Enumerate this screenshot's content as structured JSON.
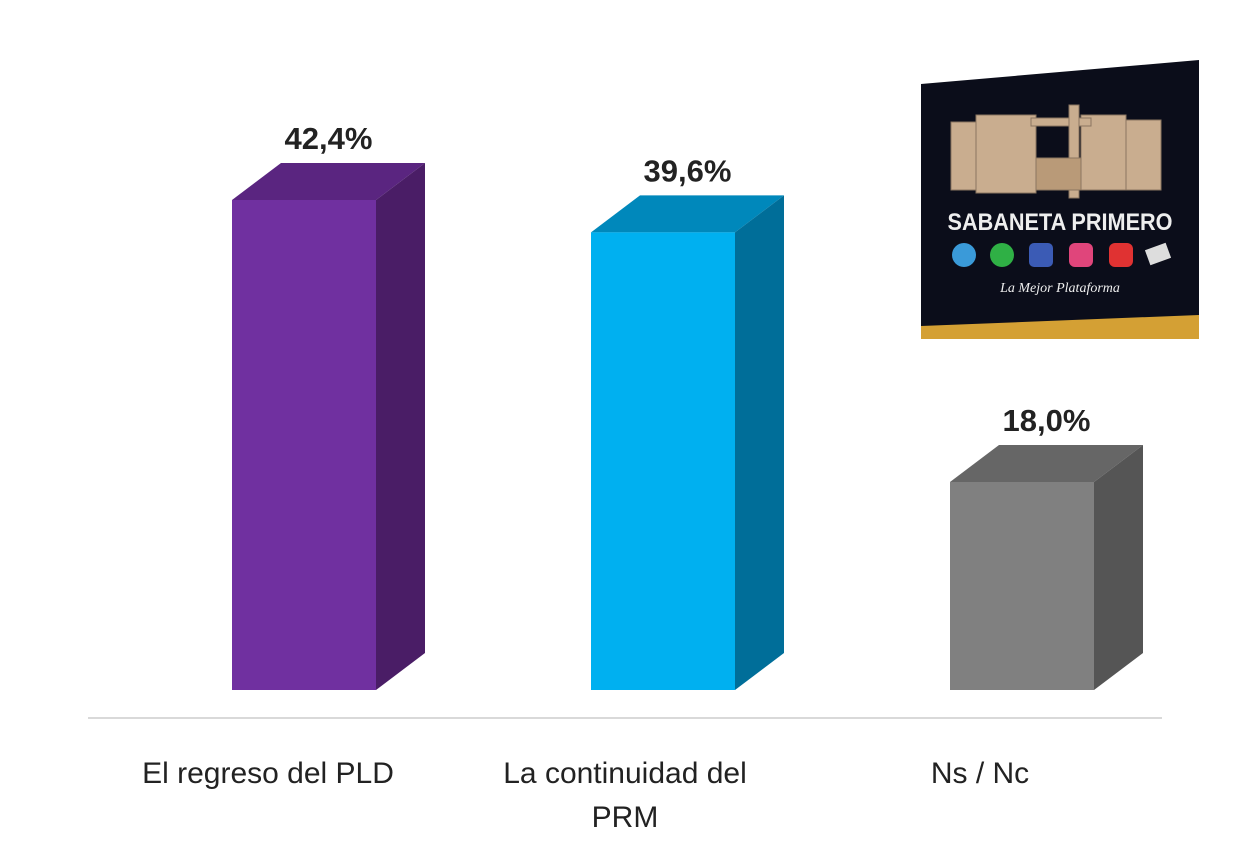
{
  "chart_data": {
    "type": "bar",
    "style": "3d-column",
    "categories": [
      "El regreso del PLD",
      "La continuidad del PRM",
      "Ns / Nc"
    ],
    "category_lines": [
      [
        "El regreso del PLD"
      ],
      [
        "La continuidad del",
        "PRM"
      ],
      [
        "Ns / Nc"
      ]
    ],
    "values": [
      42.4,
      39.6,
      18.0
    ],
    "data_labels": [
      "42,4%",
      "39,6%",
      "18,0%"
    ],
    "colors": [
      {
        "front": "#7030a0",
        "side": "#4a1d66",
        "top": "#5a2580"
      },
      {
        "front": "#00b0f0",
        "side": "#006e99",
        "top": "#0088bb"
      },
      {
        "front": "#808080",
        "side": "#555555",
        "top": "#666666"
      }
    ],
    "ylim": [
      0,
      50
    ],
    "grid": false,
    "legend": "none"
  },
  "watermark": {
    "title": "SABANETA PRIMERO",
    "tagline": "La Mejor Plataforma",
    "icons": [
      "telegram-icon",
      "whatsapp-icon",
      "facebook-icon",
      "instagram-icon",
      "youtube-icon",
      "newspaper-icon"
    ]
  }
}
